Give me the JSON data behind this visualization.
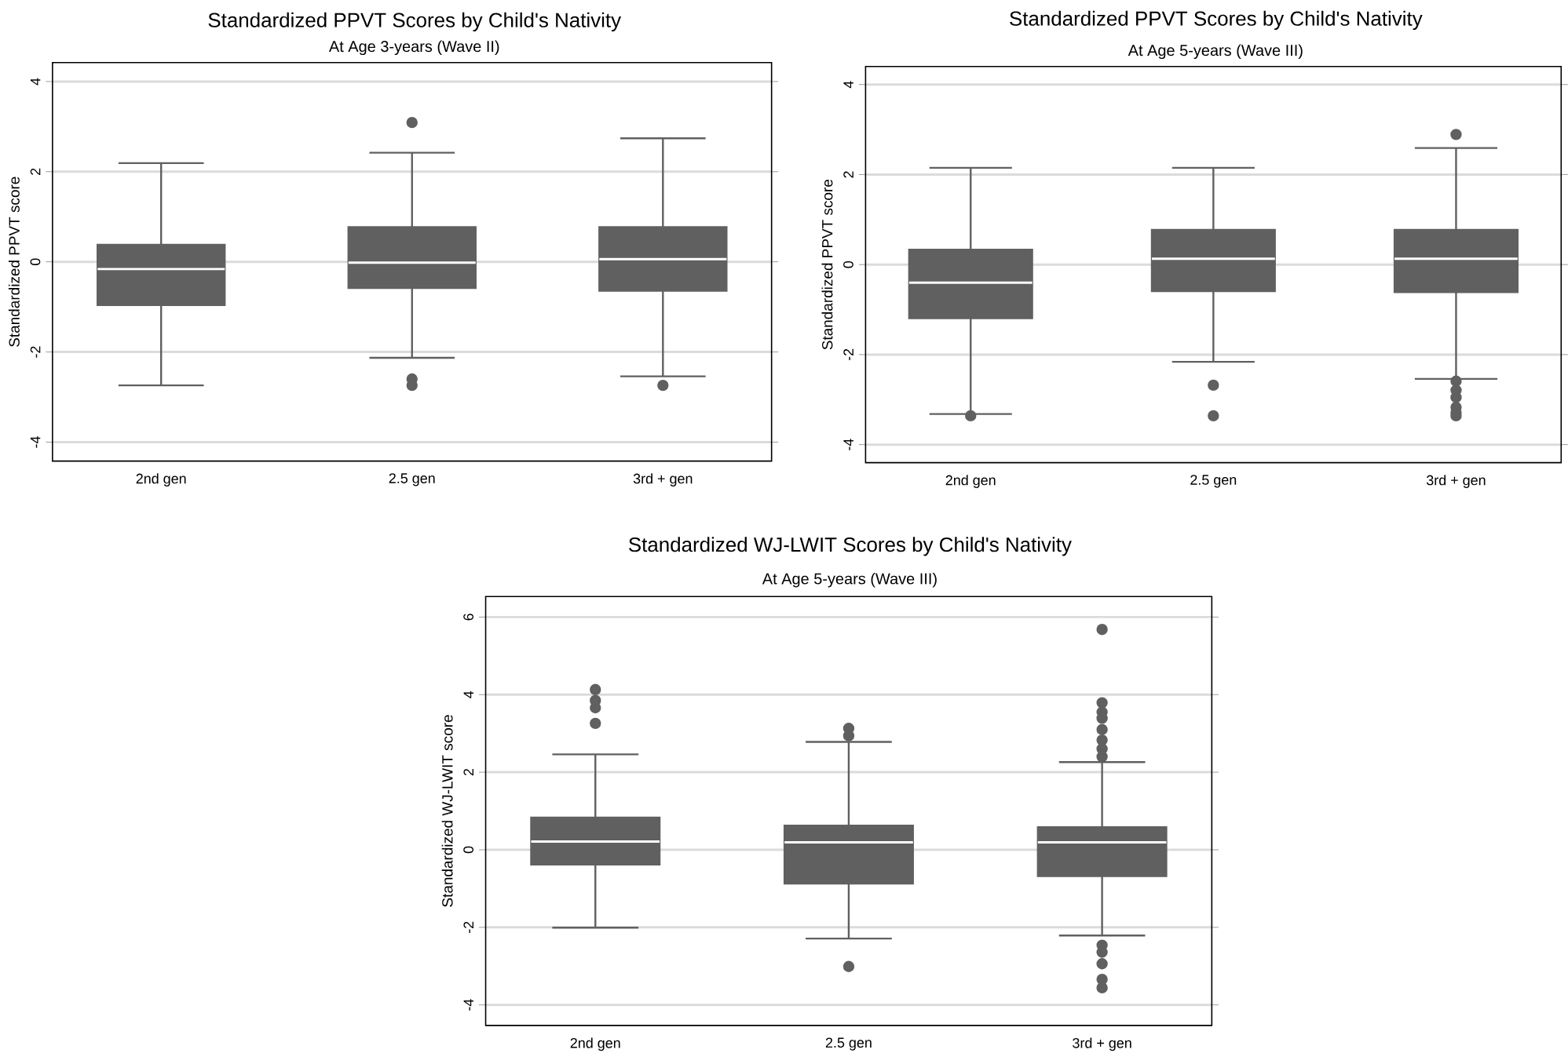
{
  "chart_data": [
    {
      "type": "box",
      "title": "Standardized PPVT Scores by Child's Nativity",
      "subtitle": "At Age 3-years (Wave II)",
      "ylabel": "Standardized PPVT score",
      "categories": [
        "2nd gen",
        "2.5 gen",
        "3rd + gen"
      ],
      "color": "#606060",
      "grid": "y",
      "ylim": [
        -4.42,
        4.42
      ],
      "yticks": [
        -4,
        -2,
        0,
        2,
        4
      ],
      "boxes": [
        {
          "low": -2.74,
          "q1": -0.96,
          "median": -0.16,
          "q3": 0.38,
          "high": 2.19
        },
        {
          "low": -2.13,
          "q1": -0.58,
          "median": -0.02,
          "q3": 0.77,
          "high": 2.42,
          "outliers": [
            3.09,
            -2.6,
            -2.74
          ]
        },
        {
          "low": -2.54,
          "q1": -0.64,
          "median": 0.06,
          "q3": 0.77,
          "high": 2.74,
          "outliers": [
            -2.74
          ]
        }
      ]
    },
    {
      "type": "box",
      "title": "Standardized PPVT Scores by Child's Nativity",
      "subtitle": "At Age 5-years (Wave III)",
      "ylabel": "Standardized PPVT score",
      "categories": [
        "2nd gen",
        "2.5 gen",
        "3rd + gen"
      ],
      "color": "#606060",
      "grid": "y",
      "ylim": [
        -4.4,
        4.4
      ],
      "yticks": [
        -4,
        -2,
        0,
        2,
        4
      ],
      "boxes": [
        {
          "low": -3.32,
          "q1": -1.19,
          "median": -0.4,
          "q3": 0.33,
          "high": 2.15,
          "outliers": [
            -3.36
          ]
        },
        {
          "low": -2.16,
          "q1": -0.59,
          "median": 0.13,
          "q3": 0.77,
          "high": 2.15,
          "outliers": [
            -2.68,
            -3.36
          ]
        },
        {
          "low": -2.54,
          "q1": -0.61,
          "median": 0.13,
          "q3": 0.77,
          "high": 2.59,
          "outliers": [
            2.89,
            -2.59,
            -2.79,
            -2.95,
            -3.17,
            -3.29,
            -3.36
          ]
        }
      ]
    },
    {
      "type": "box",
      "title": "Standardized WJ-LWIT Scores by Child's Nativity",
      "subtitle": "At Age 5-years (Wave III)",
      "ylabel": "Standardized WJ-LWIT score",
      "categories": [
        "2nd gen",
        "2.5 gen",
        "3rd + gen"
      ],
      "color": "#606060",
      "grid": "y",
      "ylim": [
        -4.53,
        6.53
      ],
      "yticks": [
        -4,
        -2,
        0,
        2,
        4,
        6
      ],
      "boxes": [
        {
          "low": -2.01,
          "q1": -0.38,
          "median": 0.21,
          "q3": 0.83,
          "high": 2.46,
          "outliers": [
            4.13,
            3.85,
            3.66,
            3.26
          ]
        },
        {
          "low": -2.29,
          "q1": -0.87,
          "median": 0.19,
          "q3": 0.62,
          "high": 2.78,
          "outliers": [
            3.13,
            2.94,
            -3.01
          ]
        },
        {
          "low": -2.21,
          "q1": -0.68,
          "median": 0.19,
          "q3": 0.58,
          "high": 2.26,
          "outliers": [
            5.68,
            3.79,
            3.55,
            3.39,
            3.1,
            2.83,
            2.6,
            2.4,
            -2.46,
            -2.64,
            -2.94,
            -3.34,
            -3.56
          ]
        }
      ]
    }
  ]
}
